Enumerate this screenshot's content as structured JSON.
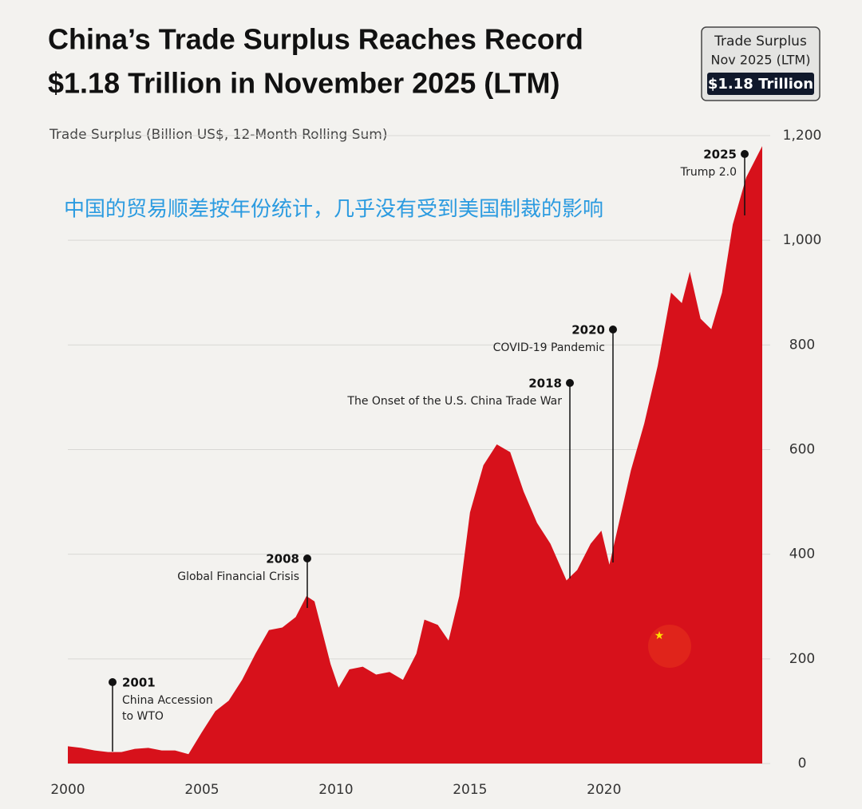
{
  "chart_data": {
    "type": "area",
    "title": [
      "China’s Trade Surplus Reaches Record",
      "$1.18 Trillion in November 2025 (LTM)"
    ],
    "y_label": "Trade Surplus (Billion US$, 12-Month Rolling Sum)",
    "caption": "中国的贸易顺差按年份统计，几乎没有受到美国制裁的影响",
    "callout": [
      "Trade Surplus",
      "Nov 2025 (LTM)",
      "$1.18 Trillion"
    ],
    "color": "#d7111b",
    "x": [
      2000,
      2000.5,
      2001,
      2001.5,
      2002,
      2002.5,
      2003,
      2003.5,
      2004,
      2004.5,
      2005,
      2005.5,
      2006,
      2006.5,
      2007,
      2007.5,
      2008,
      2008.5,
      2008.9,
      2009.2,
      2009.5,
      2009.8,
      2010.1,
      2010.5,
      2011,
      2011.5,
      2012,
      2012.5,
      2013,
      2013.3,
      2013.8,
      2014.2,
      2014.6,
      2015,
      2015.5,
      2016,
      2016.5,
      2017,
      2017.5,
      2018,
      2018.6,
      2019,
      2019.5,
      2019.9,
      2020.2,
      2020.6,
      2021,
      2021.5,
      2022,
      2022.5,
      2022.9,
      2023.2,
      2023.6,
      2024,
      2024.4,
      2024.8,
      2025.3,
      2025.8,
      2025.9
    ],
    "values": [
      33,
      30,
      25,
      22,
      22,
      28,
      30,
      25,
      25,
      18,
      60,
      100,
      120,
      160,
      210,
      255,
      260,
      280,
      320,
      310,
      250,
      190,
      145,
      180,
      185,
      170,
      175,
      160,
      210,
      275,
      265,
      235,
      320,
      480,
      570,
      610,
      595,
      520,
      460,
      420,
      350,
      370,
      420,
      445,
      380,
      470,
      560,
      650,
      760,
      900,
      880,
      940,
      850,
      830,
      900,
      1030,
      1120,
      1170,
      1180
    ],
    "xlim": [
      2000,
      2025.9
    ],
    "xticks": [
      2000,
      2005,
      2010,
      2015,
      2020
    ],
    "ylim": [
      0,
      1200
    ],
    "yticks": [
      0,
      200,
      400,
      600,
      800,
      {
        "value": 1000,
        "label": "1,000"
      },
      {
        "value": 1200,
        "label": "1,200"
      }
    ],
    "grid": true,
    "annotations": [
      {
        "year": "2001",
        "text": [
          "China Accession",
          "to WTO"
        ]
      },
      {
        "year": "2008",
        "text": [
          "Global Financial Crisis"
        ]
      },
      {
        "year": "2018",
        "text": [
          "The Onset of the U.S. China Trade War"
        ]
      },
      {
        "year": "2020",
        "text": [
          "COVID-19 Pandemic"
        ]
      },
      {
        "year": "2025",
        "text": [
          "Trump 2.0"
        ]
      }
    ]
  }
}
